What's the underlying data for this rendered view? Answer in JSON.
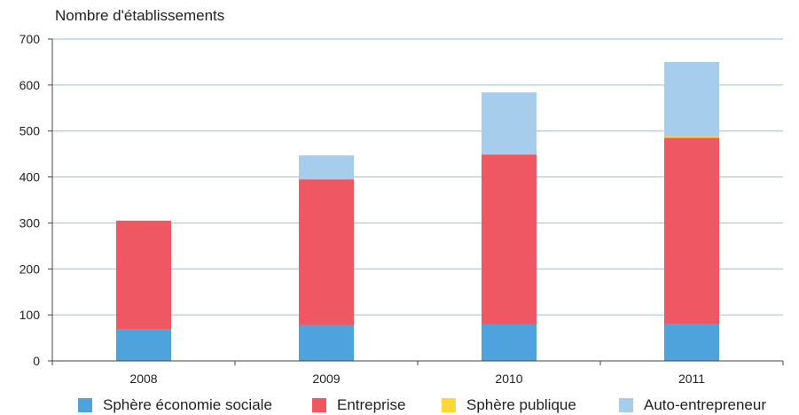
{
  "chart_data": {
    "type": "bar",
    "stacked": true,
    "title": "",
    "ylabel": "Nombre d'établissements",
    "xlabel": "",
    "categories": [
      "2008",
      "2009",
      "2010",
      "2011"
    ],
    "ylim": [
      0,
      700
    ],
    "yticks": [
      0,
      100,
      200,
      300,
      400,
      500,
      600,
      700
    ],
    "grid": true,
    "legend_position": "bottom",
    "series": [
      {
        "name": "Sphère économie sociale",
        "color": "#4ea3dc",
        "values": [
          68,
          78,
          80,
          81
        ]
      },
      {
        "name": "Entreprise",
        "color": "#ef5862",
        "values": [
          237,
          317,
          369,
          404
        ]
      },
      {
        "name": "Sphère publique",
        "color": "#fdd835",
        "values": [
          0,
          0,
          0,
          3
        ]
      },
      {
        "name": "Auto-entrepreneur",
        "color": "#a7cdec",
        "values": [
          0,
          52,
          135,
          162
        ]
      }
    ]
  }
}
